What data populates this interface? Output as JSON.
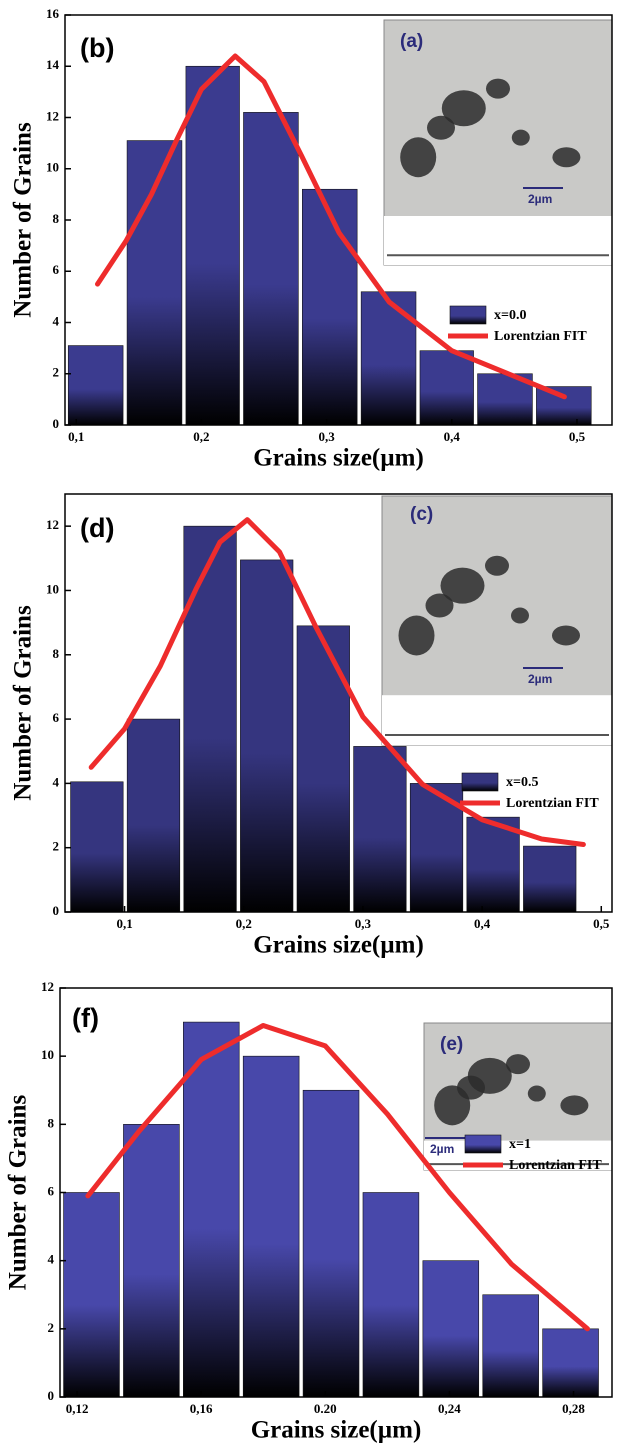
{
  "chart_data": [
    {
      "type": "histogram",
      "panel_label": "(b)",
      "x_label": "Grains size(µm)",
      "y_label": "Number of Grains",
      "inset_label": "(a)",
      "inset_scale": "2µm",
      "bins": [
        0.092,
        0.139,
        0.186,
        0.232,
        0.279,
        0.326,
        0.373,
        0.419,
        0.466,
        0.513
      ],
      "xlim": [
        0.091,
        0.528
      ],
      "xticks": [
        {
          "value": 0.1,
          "label": "0,1"
        },
        {
          "value": 0.2,
          "label": "0,2"
        },
        {
          "value": 0.3,
          "label": "0,3"
        },
        {
          "value": 0.4,
          "label": "0,4"
        },
        {
          "value": 0.5,
          "label": "0,5"
        }
      ],
      "ylim": [
        0,
        16
      ],
      "yticks": [
        0,
        2,
        4,
        6,
        8,
        10,
        12,
        14,
        16
      ],
      "series": [
        {
          "name": "x=0.0",
          "color": "#3b3b8f",
          "values": [
            3.1,
            11.1,
            14,
            12.2,
            9.2,
            5.2,
            2.9,
            2.0,
            1.5
          ]
        },
        {
          "name": "Lorentzian FIT",
          "color": "#ee2c2c",
          "x": [
            0.117,
            0.14,
            0.16,
            0.18,
            0.2,
            0.227,
            0.25,
            0.28,
            0.31,
            0.35,
            0.4,
            0.45,
            0.49
          ],
          "values": [
            5.5,
            7.2,
            9.0,
            11.1,
            13.1,
            14.4,
            13.4,
            10.5,
            7.5,
            4.8,
            2.9,
            1.9,
            1.1
          ]
        }
      ]
    },
    {
      "type": "histogram",
      "panel_label": "(d)",
      "x_label": "Grains size(µm)",
      "y_label": "Number of Grains",
      "inset_label": "(c)",
      "inset_scale": "2µm",
      "bins": [
        0.053,
        0.1005,
        0.148,
        0.1955,
        0.243,
        0.2905,
        0.338,
        0.3855,
        0.433,
        0.4805
      ],
      "xlim": [
        0.05,
        0.509
      ],
      "xticks": [
        {
          "value": 0.1,
          "label": "0,1"
        },
        {
          "value": 0.2,
          "label": "0,2"
        },
        {
          "value": 0.3,
          "label": "0,3"
        },
        {
          "value": 0.4,
          "label": "0,4"
        },
        {
          "value": 0.5,
          "label": "0,5"
        }
      ],
      "ylim": [
        0,
        13
      ],
      "yticks": [
        0,
        2,
        4,
        6,
        8,
        10,
        12
      ],
      "series": [
        {
          "name": "x=0.5",
          "color": "#35357f",
          "values": [
            4.05,
            6,
            12,
            10.95,
            8.9,
            5.15,
            4,
            2.95,
            2.05
          ]
        },
        {
          "name": "Lorentzian FIT",
          "color": "#ee2c2c",
          "x": [
            0.072,
            0.1,
            0.13,
            0.16,
            0.18,
            0.203,
            0.23,
            0.26,
            0.3,
            0.35,
            0.4,
            0.45,
            0.485
          ],
          "values": [
            4.5,
            5.7,
            7.65,
            10.05,
            11.5,
            12.2,
            11.2,
            8.9,
            6.07,
            3.97,
            2.87,
            2.27,
            2.1
          ]
        }
      ]
    },
    {
      "type": "histogram",
      "panel_label": "(f)",
      "x_label": "Grains size(µm)",
      "y_label": "Number of Grains",
      "inset_label": "(e)",
      "inset_scale": "2µm",
      "bins": [
        0.115,
        0.1343,
        0.1536,
        0.1729,
        0.1922,
        0.2115,
        0.2308,
        0.2501,
        0.2694,
        0.2887
      ],
      "xlim": [
        0.1145,
        0.2924
      ],
      "xticks": [
        {
          "value": 0.12,
          "label": "0,12"
        },
        {
          "value": 0.16,
          "label": "0,16"
        },
        {
          "value": 0.2,
          "label": "0.20"
        },
        {
          "value": 0.24,
          "label": "0,24"
        },
        {
          "value": 0.28,
          "label": "0,28"
        }
      ],
      "ylim": [
        0,
        12
      ],
      "yticks": [
        0,
        2,
        4,
        6,
        8,
        10,
        12
      ],
      "series": [
        {
          "name": "x=1",
          "color": "#4848aa",
          "values": [
            6,
            8,
            11,
            10,
            9,
            6,
            4,
            3,
            2
          ]
        },
        {
          "name": "Lorentzian FIT",
          "color": "#ee2c2c",
          "x": [
            0.1235,
            0.14,
            0.16,
            0.18,
            0.2,
            0.22,
            0.24,
            0.26,
            0.2845
          ],
          "values": [
            5.9,
            7.8,
            9.9,
            10.9,
            10.3,
            8.3,
            6.0,
            3.9,
            2.0
          ]
        }
      ]
    }
  ]
}
